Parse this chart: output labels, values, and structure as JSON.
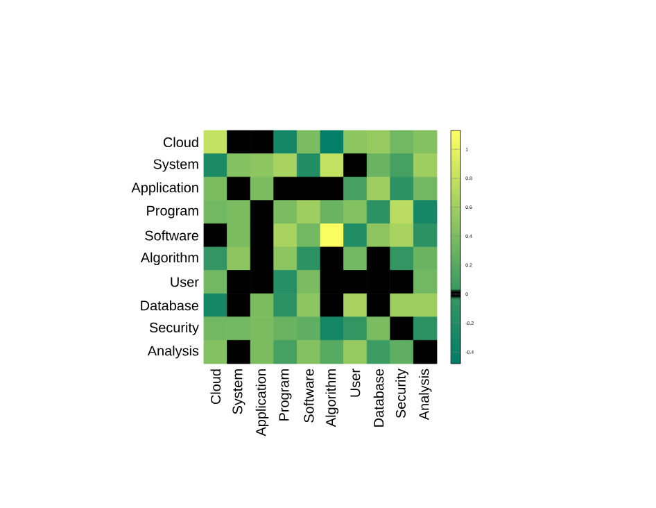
{
  "chart_data": {
    "type": "heatmap",
    "categories": [
      "Cloud",
      "System",
      "Application",
      "Program",
      "Software",
      "Algorithm",
      "User",
      "Database",
      "Security",
      "Analysis"
    ],
    "y_categories": [
      "Cloud",
      "System",
      "Application",
      "Program",
      "Software",
      "Algorithm",
      "User",
      "Database",
      "Security",
      "Analysis"
    ],
    "cells": [
      [
        0.8,
        0,
        0,
        -0.3,
        0.4,
        -0.45,
        0.5,
        0.55,
        0.35,
        0.45
      ],
      [
        -0.25,
        0.45,
        0.5,
        0.65,
        -0.2,
        0.8,
        0,
        0.3,
        0.1,
        0.6
      ],
      [
        0.4,
        0,
        0.4,
        0,
        0,
        0,
        0.1,
        0.6,
        -0.1,
        0.35
      ],
      [
        0.35,
        0.4,
        0,
        0.4,
        0.6,
        0.3,
        0.45,
        -0.1,
        0.75,
        -0.3
      ],
      [
        0,
        0.4,
        0,
        0.65,
        0.35,
        1.1,
        -0.2,
        0.5,
        0.65,
        -0.1
      ],
      [
        -0.05,
        0.5,
        0,
        0.5,
        -0.1,
        0,
        0.35,
        0,
        -0.05,
        0.3
      ],
      [
        0.35,
        0,
        0,
        -0.15,
        0.4,
        0,
        0,
        0,
        0,
        0.35
      ],
      [
        -0.3,
        0,
        0.4,
        -0.1,
        0.5,
        0,
        0.65,
        0,
        0.6,
        0.6
      ],
      [
        0.35,
        0.35,
        0.4,
        0.3,
        0.25,
        -0.3,
        -0.05,
        0.4,
        0,
        -0.1
      ],
      [
        0.45,
        0,
        0.4,
        0.1,
        0.45,
        0.2,
        0.55,
        0.05,
        0.25,
        0
      ]
    ],
    "clim": [
      -0.48,
      1.13
    ],
    "cticks": [
      {
        "value": -0.4,
        "label": "-0.4"
      },
      {
        "value": -0.2,
        "label": "-0.2"
      },
      {
        "value": 0,
        "label": "0"
      },
      {
        "value": 0.2,
        "label": "0.2"
      },
      {
        "value": 0.4,
        "label": "0.4"
      },
      {
        "value": 0.6,
        "label": "0.6"
      },
      {
        "value": 0.8,
        "label": "0.8"
      },
      {
        "value": 1,
        "label": "1"
      }
    ]
  }
}
